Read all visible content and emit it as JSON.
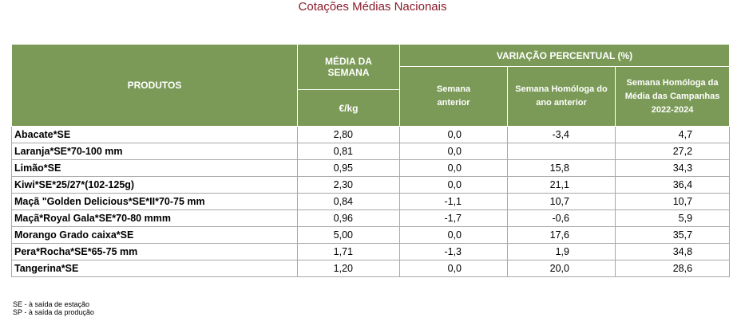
{
  "header": {
    "title": "Cotações Médias Nacionais"
  },
  "table": {
    "head": {
      "products": "PRODUTOS",
      "avg": "MÉDIA DA SEMANA",
      "unit": "€/kg",
      "variation": "VARIAÇÃO PERCENTUAL (%)",
      "prev_week": "Semana anterior",
      "same_week_prev_year": "Semana Homóloga do ano anterior",
      "same_week_campaigns": "Semana Homóloga da Média das Campanhas 2022-2024"
    },
    "rows": [
      [
        "Abacate*SE",
        "2,80",
        "0,0",
        "-3,4",
        "4,7"
      ],
      [
        "Laranja*SE*70-100 mm",
        "0,81",
        "0,0",
        null,
        "27,2"
      ],
      [
        "Limão*SE",
        "0,95",
        "0,0",
        "15,8",
        "34,3"
      ],
      [
        "Kiwi*SE*25/27*(102-125g)",
        "2,30",
        "0,0",
        "21,1",
        "36,4"
      ],
      [
        "Maçã \"Golden Delicious*SE*II*70-75 mm",
        "0,84",
        "-1,1",
        "10,7",
        "10,7"
      ],
      [
        "Maçã*Royal Gala*SE*70-80 mmm",
        "0,96",
        "-1,7",
        "-0,6",
        "5,9"
      ],
      [
        "Morango Grado caixa*SE",
        "5,00",
        "0,0",
        "17,6",
        "35,7"
      ],
      [
        "Pera*Rocha*SE*65-75 mm",
        "1,71",
        "-1,3",
        "1,9",
        "34,8"
      ],
      [
        "Tangerina*SE",
        "1,20",
        "0,0",
        "20,0",
        "28,6"
      ]
    ]
  },
  "notes": [
    "SE - à saída de estação",
    "SP - à saída da produção"
  ]
}
